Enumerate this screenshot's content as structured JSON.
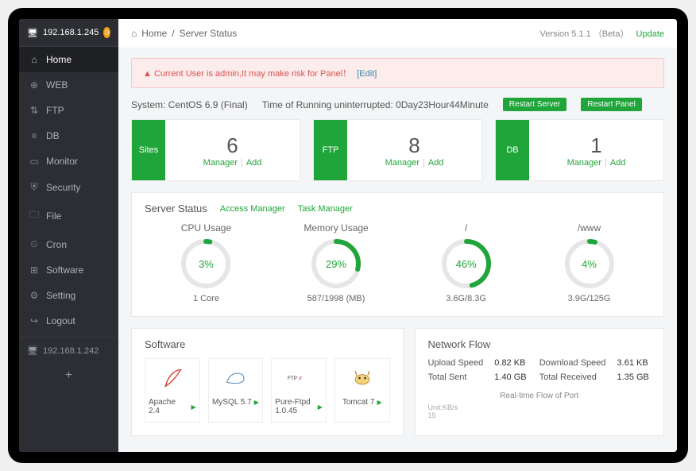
{
  "sidebar": {
    "ip_primary": "192.168.1.245",
    "badge": "0",
    "items": [
      {
        "icon": "⌂",
        "label": "Home",
        "active": true
      },
      {
        "icon": "⊕",
        "label": "WEB"
      },
      {
        "icon": "⇅",
        "label": "FTP"
      },
      {
        "icon": "≡",
        "label": "DB"
      },
      {
        "icon": "▭",
        "label": "Monitor"
      },
      {
        "icon": "⛨",
        "label": "Security"
      },
      {
        "icon": "🗀",
        "label": "File"
      },
      {
        "icon": "⏲",
        "label": "Cron"
      },
      {
        "icon": "⊞",
        "label": "Software"
      },
      {
        "icon": "⚙",
        "label": "Setting"
      },
      {
        "icon": "↪",
        "label": "Logout"
      }
    ],
    "ip_secondary": "192.168.1.242"
  },
  "breadcrumb": {
    "root": "Home",
    "sep": "/",
    "current": "Server Status",
    "version_label": "Version 5.1.1",
    "beta": "（Beta）",
    "update": "Update"
  },
  "alert": {
    "warn_icon": "▲",
    "text": "Current User is admin,It may make risk for Panel！",
    "edit": "[Edit]"
  },
  "sysbar": {
    "system": "System: CentOS 6.9 (Final)",
    "uptime": "Time of Running uninterrupted: 0Day23Hour44Minute",
    "btn1": "Restart Server",
    "btn2": "Restart Panel"
  },
  "tiles": [
    {
      "tab": "Sites",
      "count": "6",
      "manager": "Manager",
      "add": "Add"
    },
    {
      "tab": "FTP",
      "count": "8",
      "manager": "Manager",
      "add": "Add"
    },
    {
      "tab": "DB",
      "count": "1",
      "manager": "Manager",
      "add": "Add"
    }
  ],
  "status": {
    "title": "Server Status",
    "link1": "Access Manager",
    "link2": "Task Manager",
    "gauges": [
      {
        "label": "CPU Usage",
        "pct": 3,
        "sub": "1 Core"
      },
      {
        "label": "Memory Usage",
        "pct": 29,
        "sub": "587/1998 (MB)"
      },
      {
        "label": "/",
        "pct": 46,
        "sub": "3.6G/8.3G"
      },
      {
        "label": "/www",
        "pct": 4,
        "sub": "3.9G/125G"
      }
    ],
    "accent": "#20a53a",
    "track": "#e6e6e6"
  },
  "software": {
    "title": "Software",
    "items": [
      {
        "name": "Apache 2.4",
        "icon": "feather",
        "color": "#d13a2f"
      },
      {
        "name": "MySQL 5.7",
        "icon": "dolphin",
        "color": "#5b8db8"
      },
      {
        "name": "Pure-Ftpd 1.0.45",
        "icon": "ftpd",
        "color": "#444"
      },
      {
        "name": "Tomcat 7",
        "icon": "tomcat",
        "color": "#d6a13a"
      }
    ]
  },
  "network": {
    "title": "Network Flow",
    "rows": [
      {
        "l": "Upload Speed",
        "lv": "0.82 KB",
        "r": "Download Speed",
        "rv": "3.61 KB"
      },
      {
        "l": "Total Sent",
        "lv": "1.40 GB",
        "r": "Total Received",
        "rv": "1.35 GB"
      }
    ],
    "chart_title": "Real-time Flow of Port",
    "unit": "Unit:KB/s",
    "ytick": "15"
  }
}
